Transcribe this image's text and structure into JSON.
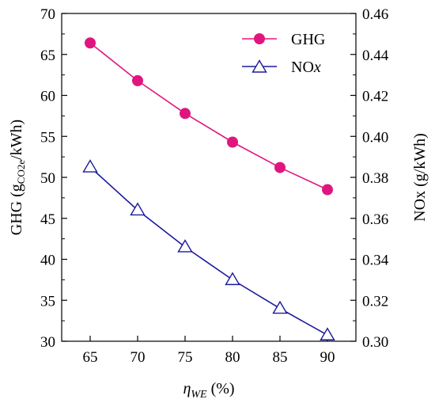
{
  "chart_data": {
    "type": "line",
    "x": [
      65,
      70,
      75,
      80,
      85,
      90
    ],
    "xlim": [
      62,
      93
    ],
    "xticks": [
      65,
      70,
      75,
      80,
      85,
      90
    ],
    "xlabel": {
      "main": "η",
      "sub": "WE",
      "rest": " (%)"
    },
    "y_left": {
      "label": {
        "pre": "GHG (g",
        "sub": "CO2e",
        "post": "/kWh)"
      },
      "ylim": [
        30,
        70
      ],
      "ticks": [
        30,
        35,
        40,
        45,
        50,
        55,
        60,
        65,
        70
      ],
      "tick_labels": [
        "30",
        "35",
        "40",
        "45",
        "50",
        "55",
        "60",
        "65",
        "70"
      ]
    },
    "y_right": {
      "label": "NOx (g/kWh)",
      "ylim": [
        0.3,
        0.46
      ],
      "ticks": [
        0.3,
        0.32,
        0.34,
        0.36,
        0.38,
        0.4,
        0.42,
        0.44,
        0.46
      ],
      "tick_labels": [
        "0.30",
        "0.32",
        "0.34",
        "0.36",
        "0.38",
        "0.40",
        "0.42",
        "0.44",
        "0.46"
      ]
    },
    "series": [
      {
        "name": "GHG",
        "axis": "left",
        "marker": "circle",
        "color": "#e0167f",
        "values": [
          66.4,
          61.8,
          57.8,
          54.3,
          51.2,
          48.5
        ]
      },
      {
        "name": "NOx",
        "axis": "right",
        "marker": "triangle",
        "color": "#1a1a9c",
        "values": [
          0.385,
          0.364,
          0.346,
          0.33,
          0.316,
          0.303
        ]
      }
    ],
    "legend": {
      "placement": "top-right",
      "entries": [
        {
          "pre": "GHG",
          "italic": ""
        },
        {
          "pre": "NO",
          "italic": "x"
        }
      ]
    },
    "grid": false
  }
}
